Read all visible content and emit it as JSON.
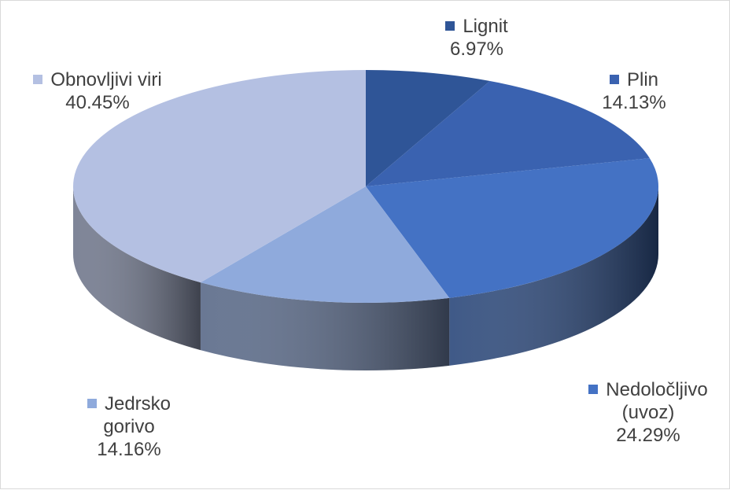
{
  "chart_data": {
    "type": "pie",
    "style": "3d",
    "title": "",
    "slices": [
      {
        "label_lines": [
          "Lignit"
        ],
        "value": 6.97,
        "value_label": "6.97%",
        "color": "#2f5597"
      },
      {
        "label_lines": [
          "Plin"
        ],
        "value": 14.13,
        "value_label": "14.13%",
        "color": "#3a62b0"
      },
      {
        "label_lines": [
          "Nedoločljivo",
          "(uvoz)"
        ],
        "value": 24.29,
        "value_label": "24.29%",
        "color": "#4472c4"
      },
      {
        "label_lines": [
          "Jedrsko",
          "gorivo"
        ],
        "value": 14.16,
        "value_label": "14.16%",
        "color": "#8faadc"
      },
      {
        "label_lines": [
          "Obnovljivi viri"
        ],
        "value": 40.45,
        "value_label": "40.45%",
        "color": "#b4c0e2"
      }
    ],
    "start": "top, clockwise",
    "legend": "data labels next to slices"
  }
}
